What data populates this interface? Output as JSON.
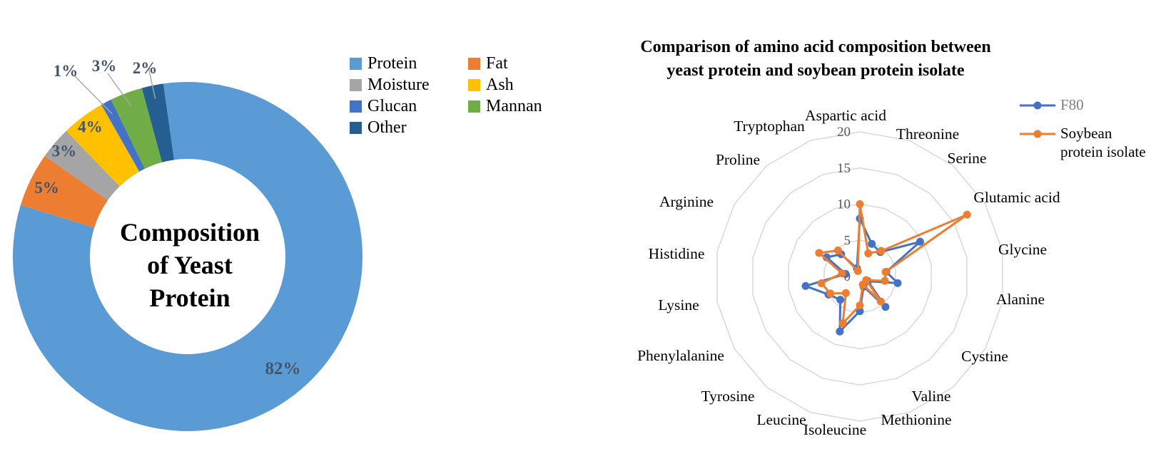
{
  "figure": {
    "background": "#FFFFFF"
  },
  "chart_data": [
    {
      "type": "pie",
      "subtype": "donut",
      "title": "Composition of Yeast Protein",
      "center_label_lines": [
        "Composition",
        "of Yeast",
        "Protein"
      ],
      "categories": [
        "Protein",
        "Fat",
        "Moisture",
        "Ash",
        "Glucan",
        "Mannan",
        "Other"
      ],
      "values": [
        82,
        5,
        3,
        4,
        1,
        3,
        2
      ],
      "unit": "%",
      "slice_labels": [
        "82%",
        "5%",
        "3%",
        "4%",
        "1%",
        "3%",
        "2%"
      ],
      "colors": [
        "#5B9BD5",
        "#ED7D31",
        "#A5A5A5",
        "#FFC000",
        "#4472C4",
        "#70AD47",
        "#255E91"
      ],
      "label_color": "#44546A",
      "leader_line_color": "#A6A6A6",
      "start_angle_deg": -8,
      "direction": "clockwise",
      "legend": {
        "position": "right",
        "columns": [
          [
            "Protein",
            "Moisture",
            "Glucan",
            "Other"
          ],
          [
            "Fat",
            "Ash",
            "Mannan"
          ]
        ]
      }
    },
    {
      "type": "line",
      "subtype": "radar",
      "title_lines": [
        "Comparison of amino acid composition between",
        "yeast protein and soybean protein isolate"
      ],
      "categories": [
        "Aspartic acid",
        "Threonine",
        "Serine",
        "Glutamic acid",
        "Glycine",
        "Alanine",
        "Cystine",
        "Valine",
        "Methionine",
        "Isoleucine",
        "Leucine",
        "Tyrosine",
        "Phenylalanine",
        "Lysine",
        "Histidine",
        "Arginine",
        "Proline",
        "Tryptophan"
      ],
      "series": [
        {
          "name": "F80",
          "color": "#4472C4",
          "values": [
            8.0,
            4.8,
            4.4,
            9.6,
            3.7,
            5.3,
            1.3,
            5.5,
            1.5,
            4.8,
            8.1,
            4.2,
            5.0,
            7.6,
            2.0,
            5.3,
            4.0,
            1.2
          ]
        },
        {
          "name": "Soybean protein isolate",
          "legend_lines": [
            "Soybean",
            "protein isolate"
          ],
          "color": "#ED7D31",
          "values": [
            10.0,
            3.4,
            4.6,
            17.1,
            3.6,
            3.5,
            1.0,
            4.5,
            1.2,
            4.0,
            6.9,
            3.0,
            4.7,
            5.4,
            2.5,
            6.5,
            4.7,
            0.8
          ]
        }
      ],
      "r_axis": {
        "min": 0,
        "max": 20,
        "ticks": [
          0,
          5,
          10,
          15,
          20
        ]
      },
      "grid_color": "#D9D9D9",
      "tick_color": "#595959",
      "legend_position": "top-right",
      "legend_text_colors": [
        "#7F7F7F",
        "#000000"
      ]
    }
  ]
}
